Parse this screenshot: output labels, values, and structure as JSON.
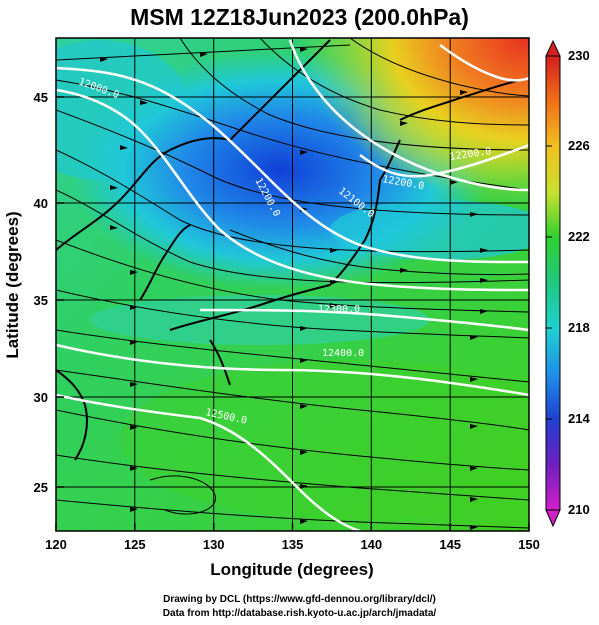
{
  "title": "MSM 12Z18Jun2023 (200.0hPa)",
  "x_axis": {
    "label": "Longitude (degrees)",
    "ticks": [
      "120",
      "125",
      "130",
      "135",
      "140",
      "145",
      "150"
    ]
  },
  "y_axis": {
    "label": "Latitude  (degrees)",
    "ticks": [
      "25",
      "30",
      "35",
      "40",
      "45"
    ]
  },
  "colorbar": {
    "labels": [
      "230",
      "226",
      "222",
      "218",
      "214",
      "210"
    ],
    "colors": [
      "#d42020",
      "#f07018",
      "#f0c020",
      "#c8e030",
      "#30d030",
      "#20c880",
      "#20d0d0",
      "#2090e8",
      "#2040d0",
      "#7020c0",
      "#d020c8"
    ]
  },
  "contours": {
    "label_1": "12000.0",
    "label_2": "12100.0",
    "label_3": "12200.0",
    "label_4": "12300.0",
    "label_5": "12400.0",
    "label_6": "12500.0",
    "label_7": "12200.0",
    "label_8": "12300.0"
  },
  "credits": {
    "line1": "Drawing by DCL (https://www.gfd-dennou.org/library/dcl/)",
    "line2": "Data from http://database.rish.kyoto-u.ac.jp/arch/jmadata/"
  },
  "chart_data": {
    "type": "heatmap",
    "title": "MSM 12Z18Jun2023 (200.0hPa)",
    "xlabel": "Longitude (degrees)",
    "ylabel": "Latitude  (degrees)",
    "xlim": [
      120,
      150
    ],
    "ylim": [
      22.5,
      47.8
    ],
    "colorbar_range": [
      210,
      230
    ],
    "grid": true,
    "contour_labels": [
      "12000.0",
      "12100.0",
      "12200.0",
      "12300.0",
      "12400.0",
      "12500.0"
    ]
  }
}
